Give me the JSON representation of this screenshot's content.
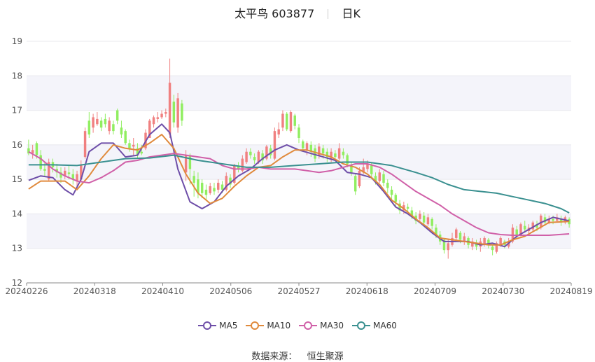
{
  "title": {
    "name": "太平鸟",
    "code": "603877",
    "period": "日K"
  },
  "source": {
    "label": "数据来源：",
    "value": "恒生聚源"
  },
  "colors": {
    "up": "#f08080",
    "down": "#90ee60",
    "MA5": "#6e4ea8",
    "MA10": "#e08a3c",
    "MA30": "#d060a8",
    "MA60": "#3a9090",
    "grid": "#e8e8ee",
    "band": "#f4f4fa"
  },
  "chart_data": {
    "type": "candlestick",
    "ylim": [
      12,
      19
    ],
    "yticks": [
      12,
      13,
      14,
      15,
      16,
      17,
      18,
      19
    ],
    "xticks": [
      "20240226",
      "20240318",
      "20240410",
      "20240506",
      "20240527",
      "20240618",
      "20240709",
      "20240730",
      "20240819"
    ],
    "legend": [
      "MA5",
      "MA10",
      "MA30",
      "MA60"
    ],
    "legend_position": "bottom",
    "candles": [
      [
        15.9,
        15.75,
        16.15,
        15.7
      ],
      [
        15.75,
        15.85,
        16.0,
        15.6
      ],
      [
        16.05,
        15.7,
        16.1,
        15.6
      ],
      [
        15.7,
        15.3,
        15.85,
        15.25
      ],
      [
        15.3,
        15.25,
        15.5,
        15.1
      ],
      [
        15.0,
        15.5,
        15.6,
        14.95
      ],
      [
        15.5,
        15.35,
        15.6,
        15.2
      ],
      [
        15.3,
        15.2,
        15.45,
        15.05
      ],
      [
        15.2,
        15.05,
        15.35,
        14.9
      ],
      [
        15.1,
        15.25,
        15.35,
        15.0
      ],
      [
        15.2,
        15.15,
        15.4,
        15.0
      ],
      [
        15.15,
        15.0,
        15.3,
        14.85
      ],
      [
        14.95,
        15.15,
        15.25,
        14.8
      ],
      [
        15.0,
        15.4,
        15.55,
        14.95
      ],
      [
        15.65,
        16.4,
        16.5,
        15.6
      ],
      [
        16.7,
        16.3,
        16.95,
        16.2
      ],
      [
        16.5,
        16.8,
        16.9,
        16.35
      ],
      [
        16.6,
        16.75,
        16.95,
        16.55
      ],
      [
        16.7,
        16.5,
        16.8,
        16.4
      ],
      [
        16.75,
        16.6,
        16.9,
        16.5
      ],
      [
        16.4,
        16.7,
        16.8,
        16.3
      ],
      [
        16.6,
        16.4,
        16.7,
        16.3
      ],
      [
        17.0,
        16.7,
        17.05,
        16.6
      ],
      [
        16.5,
        16.3,
        16.7,
        16.2
      ],
      [
        16.4,
        16.05,
        16.45,
        16.0
      ],
      [
        16.05,
        15.9,
        16.15,
        15.8
      ],
      [
        15.95,
        16.0,
        16.2,
        15.7
      ],
      [
        15.9,
        15.7,
        16.05,
        15.6
      ],
      [
        15.8,
        15.75,
        16.0,
        15.7
      ],
      [
        15.9,
        16.35,
        16.45,
        15.85
      ],
      [
        16.2,
        16.7,
        16.75,
        16.2
      ],
      [
        16.6,
        16.8,
        16.85,
        16.5
      ],
      [
        16.75,
        16.8,
        16.95,
        16.65
      ],
      [
        16.8,
        16.9,
        17.0,
        16.75
      ],
      [
        16.9,
        16.95,
        17.05,
        16.8
      ],
      [
        16.3,
        17.8,
        18.5,
        16.2
      ],
      [
        17.25,
        16.65,
        17.45,
        16.5
      ],
      [
        16.5,
        17.35,
        17.5,
        16.35
      ],
      [
        17.2,
        16.7,
        17.3,
        16.55
      ],
      [
        15.2,
        15.7,
        15.85,
        14.95
      ],
      [
        15.7,
        15.3,
        15.75,
        14.85
      ],
      [
        15.1,
        14.9,
        15.25,
        14.5
      ],
      [
        15.0,
        14.6,
        15.2,
        14.45
      ],
      [
        14.9,
        14.6,
        15.0,
        14.45
      ],
      [
        14.7,
        14.55,
        14.85,
        14.4
      ],
      [
        14.6,
        14.8,
        14.9,
        14.55
      ],
      [
        14.75,
        14.65,
        14.9,
        14.55
      ],
      [
        14.7,
        14.9,
        15.0,
        14.6
      ],
      [
        14.85,
        14.7,
        14.95,
        14.6
      ],
      [
        14.7,
        15.1,
        15.2,
        14.65
      ],
      [
        15.05,
        14.85,
        15.15,
        14.75
      ],
      [
        14.9,
        15.4,
        15.45,
        14.85
      ],
      [
        15.4,
        15.3,
        15.5,
        15.2
      ],
      [
        15.25,
        15.6,
        15.7,
        15.2
      ],
      [
        15.5,
        15.8,
        15.9,
        15.45
      ],
      [
        15.8,
        15.7,
        15.9,
        15.6
      ],
      [
        15.65,
        15.55,
        15.75,
        15.45
      ],
      [
        15.5,
        15.8,
        15.85,
        15.45
      ],
      [
        15.75,
        15.55,
        15.85,
        15.45
      ],
      [
        15.6,
        15.95,
        16.0,
        15.55
      ],
      [
        15.9,
        15.7,
        16.0,
        15.6
      ],
      [
        15.6,
        16.4,
        16.5,
        15.55
      ],
      [
        16.3,
        16.45,
        16.65,
        16.2
      ],
      [
        16.5,
        16.9,
        17.0,
        16.4
      ],
      [
        16.9,
        16.45,
        16.95,
        16.4
      ],
      [
        16.4,
        16.95,
        17.0,
        16.35
      ],
      [
        16.85,
        16.55,
        16.9,
        16.45
      ],
      [
        16.5,
        16.2,
        16.6,
        16.05
      ],
      [
        16.1,
        15.9,
        16.15,
        15.8
      ],
      [
        15.85,
        16.05,
        16.1,
        15.7
      ],
      [
        16.0,
        15.8,
        16.1,
        15.65
      ],
      [
        15.9,
        15.6,
        16.0,
        15.5
      ],
      [
        15.7,
        15.95,
        16.05,
        15.6
      ],
      [
        15.9,
        15.75,
        16.0,
        15.6
      ],
      [
        15.8,
        15.65,
        15.9,
        15.5
      ],
      [
        15.6,
        15.8,
        15.9,
        15.5
      ],
      [
        15.75,
        15.65,
        15.85,
        15.55
      ],
      [
        15.6,
        15.9,
        16.05,
        15.55
      ],
      [
        15.8,
        15.7,
        15.9,
        15.6
      ],
      [
        15.7,
        15.45,
        15.75,
        15.35
      ],
      [
        15.4,
        15.2,
        15.5,
        15.1
      ],
      [
        15.1,
        14.65,
        15.15,
        14.55
      ],
      [
        14.8,
        15.25,
        15.35,
        14.75
      ],
      [
        15.2,
        15.35,
        15.6,
        15.15
      ],
      [
        15.3,
        15.45,
        15.55,
        15.2
      ],
      [
        15.4,
        15.15,
        15.5,
        15.0
      ],
      [
        15.1,
        14.95,
        15.2,
        14.85
      ],
      [
        14.95,
        15.2,
        15.3,
        14.9
      ],
      [
        15.15,
        14.9,
        15.25,
        14.8
      ],
      [
        14.9,
        14.75,
        15.0,
        14.6
      ],
      [
        14.7,
        14.55,
        14.8,
        14.4
      ],
      [
        14.55,
        14.35,
        14.6,
        14.2
      ],
      [
        14.3,
        14.1,
        14.4,
        14.0
      ],
      [
        14.1,
        14.25,
        14.35,
        14.0
      ],
      [
        14.2,
        14.15,
        14.3,
        14.05
      ],
      [
        14.1,
        13.95,
        14.2,
        13.85
      ],
      [
        13.95,
        13.8,
        14.05,
        13.7
      ],
      [
        13.85,
        14.0,
        14.1,
        13.8
      ],
      [
        13.95,
        13.75,
        14.05,
        13.65
      ],
      [
        13.7,
        13.9,
        14.0,
        13.65
      ],
      [
        13.85,
        13.65,
        13.9,
        13.55
      ],
      [
        13.6,
        13.4,
        13.7,
        13.3
      ],
      [
        13.4,
        13.2,
        13.5,
        13.1
      ],
      [
        13.25,
        12.95,
        13.3,
        12.85
      ],
      [
        12.95,
        13.15,
        13.25,
        12.7
      ],
      [
        13.1,
        13.3,
        13.45,
        13.05
      ],
      [
        13.3,
        13.55,
        13.6,
        13.2
      ],
      [
        13.45,
        13.25,
        13.5,
        13.15
      ],
      [
        13.2,
        13.35,
        13.45,
        13.1
      ],
      [
        13.3,
        13.1,
        13.35,
        13.0
      ],
      [
        13.05,
        13.2,
        13.3,
        12.95
      ],
      [
        13.15,
        13.05,
        13.25,
        12.95
      ],
      [
        13.05,
        13.2,
        13.3,
        12.9
      ],
      [
        13.1,
        13.3,
        13.35,
        13.05
      ],
      [
        13.25,
        13.1,
        13.3,
        13.0
      ],
      [
        13.05,
        12.95,
        13.1,
        12.8
      ],
      [
        12.9,
        13.15,
        13.2,
        12.85
      ],
      [
        13.1,
        13.3,
        13.35,
        13.05
      ],
      [
        13.2,
        13.1,
        13.25,
        13.0
      ],
      [
        13.05,
        13.2,
        13.3,
        13.0
      ],
      [
        13.2,
        13.6,
        13.7,
        13.15
      ],
      [
        13.55,
        13.4,
        13.65,
        13.3
      ],
      [
        13.4,
        13.7,
        13.75,
        13.35
      ],
      [
        13.65,
        13.55,
        13.8,
        13.45
      ],
      [
        13.5,
        13.6,
        13.7,
        13.4
      ],
      [
        13.55,
        13.75,
        13.8,
        13.5
      ],
      [
        13.7,
        13.6,
        13.8,
        13.5
      ],
      [
        13.6,
        13.95,
        14.0,
        13.55
      ],
      [
        13.9,
        13.75,
        14.0,
        13.65
      ],
      [
        13.75,
        13.85,
        13.95,
        13.7
      ],
      [
        13.85,
        13.8,
        13.95,
        13.7
      ],
      [
        13.8,
        13.9,
        14.0,
        13.75
      ],
      [
        13.85,
        13.75,
        13.95,
        13.65
      ],
      [
        13.75,
        13.9,
        13.95,
        13.7
      ],
      [
        13.85,
        13.7,
        13.9,
        13.6
      ]
    ],
    "ma": {
      "MA5": [
        [
          0,
          14.97
        ],
        [
          3,
          15.1
        ],
        [
          6,
          15.05
        ],
        [
          9,
          14.7
        ],
        [
          11,
          14.55
        ],
        [
          13,
          15.0
        ],
        [
          15,
          15.8
        ],
        [
          18,
          16.05
        ],
        [
          21,
          16.05
        ],
        [
          24,
          15.65
        ],
        [
          27,
          15.7
        ],
        [
          30,
          16.3
        ],
        [
          33,
          16.6
        ],
        [
          35,
          16.35
        ],
        [
          37,
          15.3
        ],
        [
          40,
          14.35
        ],
        [
          43,
          14.15
        ],
        [
          46,
          14.35
        ],
        [
          49,
          14.8
        ],
        [
          52,
          15.1
        ],
        [
          55,
          15.3
        ],
        [
          58,
          15.6
        ],
        [
          61,
          15.85
        ],
        [
          64,
          16.0
        ],
        [
          67,
          15.85
        ],
        [
          70,
          15.75
        ],
        [
          73,
          15.65
        ],
        [
          76,
          15.55
        ],
        [
          79,
          15.2
        ],
        [
          82,
          15.15
        ],
        [
          85,
          15.05
        ],
        [
          88,
          14.65
        ],
        [
          91,
          14.2
        ],
        [
          94,
          14.0
        ],
        [
          97,
          13.75
        ],
        [
          100,
          13.45
        ],
        [
          103,
          13.2
        ],
        [
          106,
          13.2
        ],
        [
          109,
          13.2
        ],
        [
          112,
          13.1
        ],
        [
          115,
          13.15
        ],
        [
          118,
          13.05
        ],
        [
          121,
          13.35
        ],
        [
          124,
          13.55
        ],
        [
          127,
          13.75
        ],
        [
          130,
          13.9
        ],
        [
          134,
          13.8
        ]
      ],
      "MA10": [
        [
          0,
          14.72
        ],
        [
          3,
          14.95
        ],
        [
          6,
          14.95
        ],
        [
          9,
          14.95
        ],
        [
          12,
          14.7
        ],
        [
          15,
          15.1
        ],
        [
          18,
          15.6
        ],
        [
          21,
          16.0
        ],
        [
          24,
          15.9
        ],
        [
          27,
          15.85
        ],
        [
          30,
          16.05
        ],
        [
          33,
          16.3
        ],
        [
          36,
          15.9
        ],
        [
          39,
          15.15
        ],
        [
          42,
          14.6
        ],
        [
          45,
          14.3
        ],
        [
          48,
          14.45
        ],
        [
          51,
          14.8
        ],
        [
          54,
          15.1
        ],
        [
          57,
          15.35
        ],
        [
          60,
          15.4
        ],
        [
          63,
          15.65
        ],
        [
          66,
          15.85
        ],
        [
          69,
          15.85
        ],
        [
          72,
          15.75
        ],
        [
          75,
          15.65
        ],
        [
          78,
          15.45
        ],
        [
          81,
          15.35
        ],
        [
          84,
          15.15
        ],
        [
          87,
          14.85
        ],
        [
          90,
          14.4
        ],
        [
          93,
          14.15
        ],
        [
          96,
          13.85
        ],
        [
          99,
          13.6
        ],
        [
          102,
          13.3
        ],
        [
          105,
          13.25
        ],
        [
          108,
          13.2
        ],
        [
          111,
          13.15
        ],
        [
          114,
          13.1
        ],
        [
          117,
          13.1
        ],
        [
          120,
          13.25
        ],
        [
          123,
          13.35
        ],
        [
          126,
          13.55
        ],
        [
          129,
          13.75
        ],
        [
          134,
          13.78
        ]
      ],
      "MA30": [
        [
          0,
          15.8
        ],
        [
          3,
          15.6
        ],
        [
          6,
          15.3
        ],
        [
          9,
          15.1
        ],
        [
          12,
          14.95
        ],
        [
          15,
          14.9
        ],
        [
          18,
          15.05
        ],
        [
          21,
          15.25
        ],
        [
          24,
          15.5
        ],
        [
          27,
          15.55
        ],
        [
          30,
          15.65
        ],
        [
          33,
          15.7
        ],
        [
          36,
          15.75
        ],
        [
          39,
          15.7
        ],
        [
          42,
          15.65
        ],
        [
          45,
          15.6
        ],
        [
          48,
          15.4
        ],
        [
          51,
          15.3
        ],
        [
          54,
          15.3
        ],
        [
          57,
          15.35
        ],
        [
          60,
          15.3
        ],
        [
          63,
          15.3
        ],
        [
          66,
          15.3
        ],
        [
          69,
          15.25
        ],
        [
          72,
          15.2
        ],
        [
          75,
          15.25
        ],
        [
          78,
          15.35
        ],
        [
          81,
          15.45
        ],
        [
          84,
          15.45
        ],
        [
          87,
          15.35
        ],
        [
          90,
          15.15
        ],
        [
          93,
          14.9
        ],
        [
          96,
          14.65
        ],
        [
          99,
          14.45
        ],
        [
          102,
          14.25
        ],
        [
          105,
          14.0
        ],
        [
          108,
          13.8
        ],
        [
          111,
          13.6
        ],
        [
          114,
          13.45
        ],
        [
          117,
          13.4
        ],
        [
          120,
          13.38
        ],
        [
          123,
          13.38
        ],
        [
          126,
          13.38
        ],
        [
          129,
          13.38
        ],
        [
          134,
          13.42
        ]
      ],
      "MA60": [
        [
          0,
          15.42
        ],
        [
          6,
          15.42
        ],
        [
          12,
          15.4
        ],
        [
          18,
          15.5
        ],
        [
          24,
          15.6
        ],
        [
          30,
          15.62
        ],
        [
          36,
          15.7
        ],
        [
          42,
          15.55
        ],
        [
          48,
          15.45
        ],
        [
          54,
          15.35
        ],
        [
          60,
          15.35
        ],
        [
          66,
          15.4
        ],
        [
          72,
          15.45
        ],
        [
          78,
          15.5
        ],
        [
          84,
          15.5
        ],
        [
          90,
          15.4
        ],
        [
          96,
          15.2
        ],
        [
          100,
          15.05
        ],
        [
          104,
          14.85
        ],
        [
          108,
          14.7
        ],
        [
          112,
          14.65
        ],
        [
          116,
          14.6
        ],
        [
          120,
          14.5
        ],
        [
          124,
          14.4
        ],
        [
          128,
          14.3
        ],
        [
          132,
          14.15
        ],
        [
          134,
          14.03
        ]
      ]
    }
  }
}
